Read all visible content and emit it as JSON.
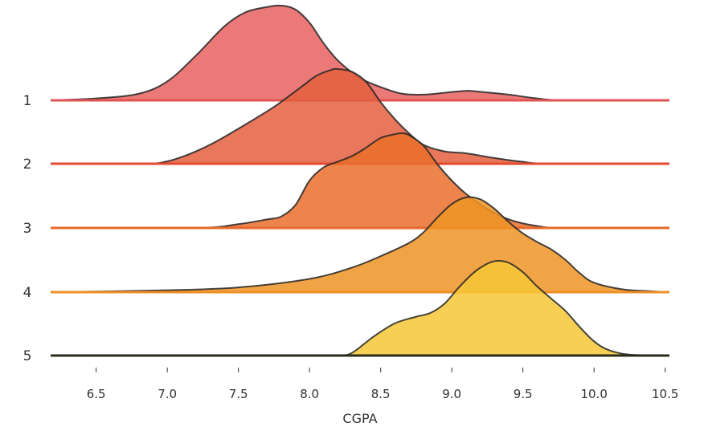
{
  "chart_data": {
    "type": "ridgeline",
    "title": "",
    "xlabel": "CGPA",
    "ylabel": "",
    "xlim": [
      6.18,
      10.53
    ],
    "x_ticks": [
      6.5,
      7.0,
      7.5,
      8.0,
      8.5,
      9.0,
      9.5,
      10.0,
      10.5
    ],
    "x_tick_labels": [
      "6.5",
      "7.0",
      "7.5",
      "8.0",
      "8.5",
      "9.0",
      "9.5",
      "10.0",
      "10.5"
    ],
    "grid": false,
    "legend": "none",
    "series": [
      {
        "name": "1",
        "color": "#e8625f",
        "baseline_color": "#e05552",
        "points": [
          [
            6.18,
            0.0
          ],
          [
            6.5,
            0.02
          ],
          [
            6.8,
            0.07
          ],
          [
            7.0,
            0.2
          ],
          [
            7.2,
            0.47
          ],
          [
            7.4,
            0.78
          ],
          [
            7.55,
            0.93
          ],
          [
            7.7,
            0.985
          ],
          [
            7.8,
            1.0
          ],
          [
            7.9,
            0.96
          ],
          [
            8.0,
            0.82
          ],
          [
            8.1,
            0.6
          ],
          [
            8.2,
            0.42
          ],
          [
            8.35,
            0.24
          ],
          [
            8.5,
            0.14
          ],
          [
            8.65,
            0.07
          ],
          [
            8.8,
            0.06
          ],
          [
            8.95,
            0.08
          ],
          [
            9.1,
            0.1
          ],
          [
            9.2,
            0.09
          ],
          [
            9.4,
            0.06
          ],
          [
            9.6,
            0.02
          ],
          [
            9.8,
            0.0
          ],
          [
            10.53,
            0.0
          ]
        ]
      },
      {
        "name": "2",
        "color": "#e45f3e",
        "baseline_color": "#e34a2f",
        "points": [
          [
            6.18,
            0.0
          ],
          [
            6.8,
            0.0
          ],
          [
            6.95,
            0.01
          ],
          [
            7.1,
            0.07
          ],
          [
            7.3,
            0.2
          ],
          [
            7.5,
            0.37
          ],
          [
            7.75,
            0.6
          ],
          [
            7.95,
            0.82
          ],
          [
            8.05,
            0.93
          ],
          [
            8.15,
            0.99
          ],
          [
            8.2,
            1.0
          ],
          [
            8.3,
            0.97
          ],
          [
            8.4,
            0.86
          ],
          [
            8.5,
            0.65
          ],
          [
            8.6,
            0.47
          ],
          [
            8.7,
            0.32
          ],
          [
            8.8,
            0.2
          ],
          [
            8.95,
            0.13
          ],
          [
            9.1,
            0.11
          ],
          [
            9.3,
            0.06
          ],
          [
            9.5,
            0.02
          ],
          [
            9.7,
            0.0
          ],
          [
            10.53,
            0.0
          ]
        ]
      },
      {
        "name": "3",
        "color": "#ea6f2c",
        "baseline_color": "#e8692a",
        "points": [
          [
            6.18,
            0.0
          ],
          [
            7.2,
            0.0
          ],
          [
            7.5,
            0.04
          ],
          [
            7.7,
            0.09
          ],
          [
            7.8,
            0.12
          ],
          [
            7.9,
            0.24
          ],
          [
            8.0,
            0.5
          ],
          [
            8.1,
            0.64
          ],
          [
            8.2,
            0.7
          ],
          [
            8.3,
            0.76
          ],
          [
            8.4,
            0.85
          ],
          [
            8.5,
            0.95
          ],
          [
            8.6,
            0.99
          ],
          [
            8.65,
            1.0
          ],
          [
            8.7,
            0.98
          ],
          [
            8.8,
            0.87
          ],
          [
            8.9,
            0.67
          ],
          [
            9.0,
            0.5
          ],
          [
            9.1,
            0.36
          ],
          [
            9.25,
            0.2
          ],
          [
            9.4,
            0.09
          ],
          [
            9.6,
            0.02
          ],
          [
            9.8,
            0.0
          ],
          [
            10.53,
            0.0
          ]
        ]
      },
      {
        "name": "4",
        "color": "#ef9425",
        "baseline_color": "#ee9027",
        "points": [
          [
            6.18,
            0.0
          ],
          [
            7.0,
            0.02
          ],
          [
            7.5,
            0.05
          ],
          [
            8.0,
            0.14
          ],
          [
            8.3,
            0.26
          ],
          [
            8.5,
            0.38
          ],
          [
            8.7,
            0.52
          ],
          [
            8.8,
            0.63
          ],
          [
            8.9,
            0.79
          ],
          [
            9.0,
            0.93
          ],
          [
            9.1,
            1.0
          ],
          [
            9.2,
            0.98
          ],
          [
            9.3,
            0.88
          ],
          [
            9.4,
            0.74
          ],
          [
            9.5,
            0.62
          ],
          [
            9.6,
            0.53
          ],
          [
            9.7,
            0.45
          ],
          [
            9.8,
            0.34
          ],
          [
            9.9,
            0.2
          ],
          [
            10.0,
            0.1
          ],
          [
            10.2,
            0.03
          ],
          [
            10.4,
            0.01
          ],
          [
            10.53,
            0.0
          ]
        ]
      },
      {
        "name": "5",
        "color": "#f6c737",
        "baseline_color": "#2a2a1a",
        "points": [
          [
            6.18,
            0.0
          ],
          [
            8.0,
            0.0
          ],
          [
            8.2,
            0.0
          ],
          [
            8.3,
            0.03
          ],
          [
            8.45,
            0.2
          ],
          [
            8.6,
            0.34
          ],
          [
            8.75,
            0.41
          ],
          [
            8.85,
            0.45
          ],
          [
            8.95,
            0.55
          ],
          [
            9.05,
            0.72
          ],
          [
            9.15,
            0.87
          ],
          [
            9.25,
            0.97
          ],
          [
            9.32,
            1.0
          ],
          [
            9.4,
            0.98
          ],
          [
            9.5,
            0.88
          ],
          [
            9.6,
            0.73
          ],
          [
            9.7,
            0.6
          ],
          [
            9.8,
            0.47
          ],
          [
            9.9,
            0.3
          ],
          [
            10.0,
            0.15
          ],
          [
            10.1,
            0.06
          ],
          [
            10.25,
            0.01
          ],
          [
            10.53,
            0.0
          ]
        ]
      }
    ]
  }
}
